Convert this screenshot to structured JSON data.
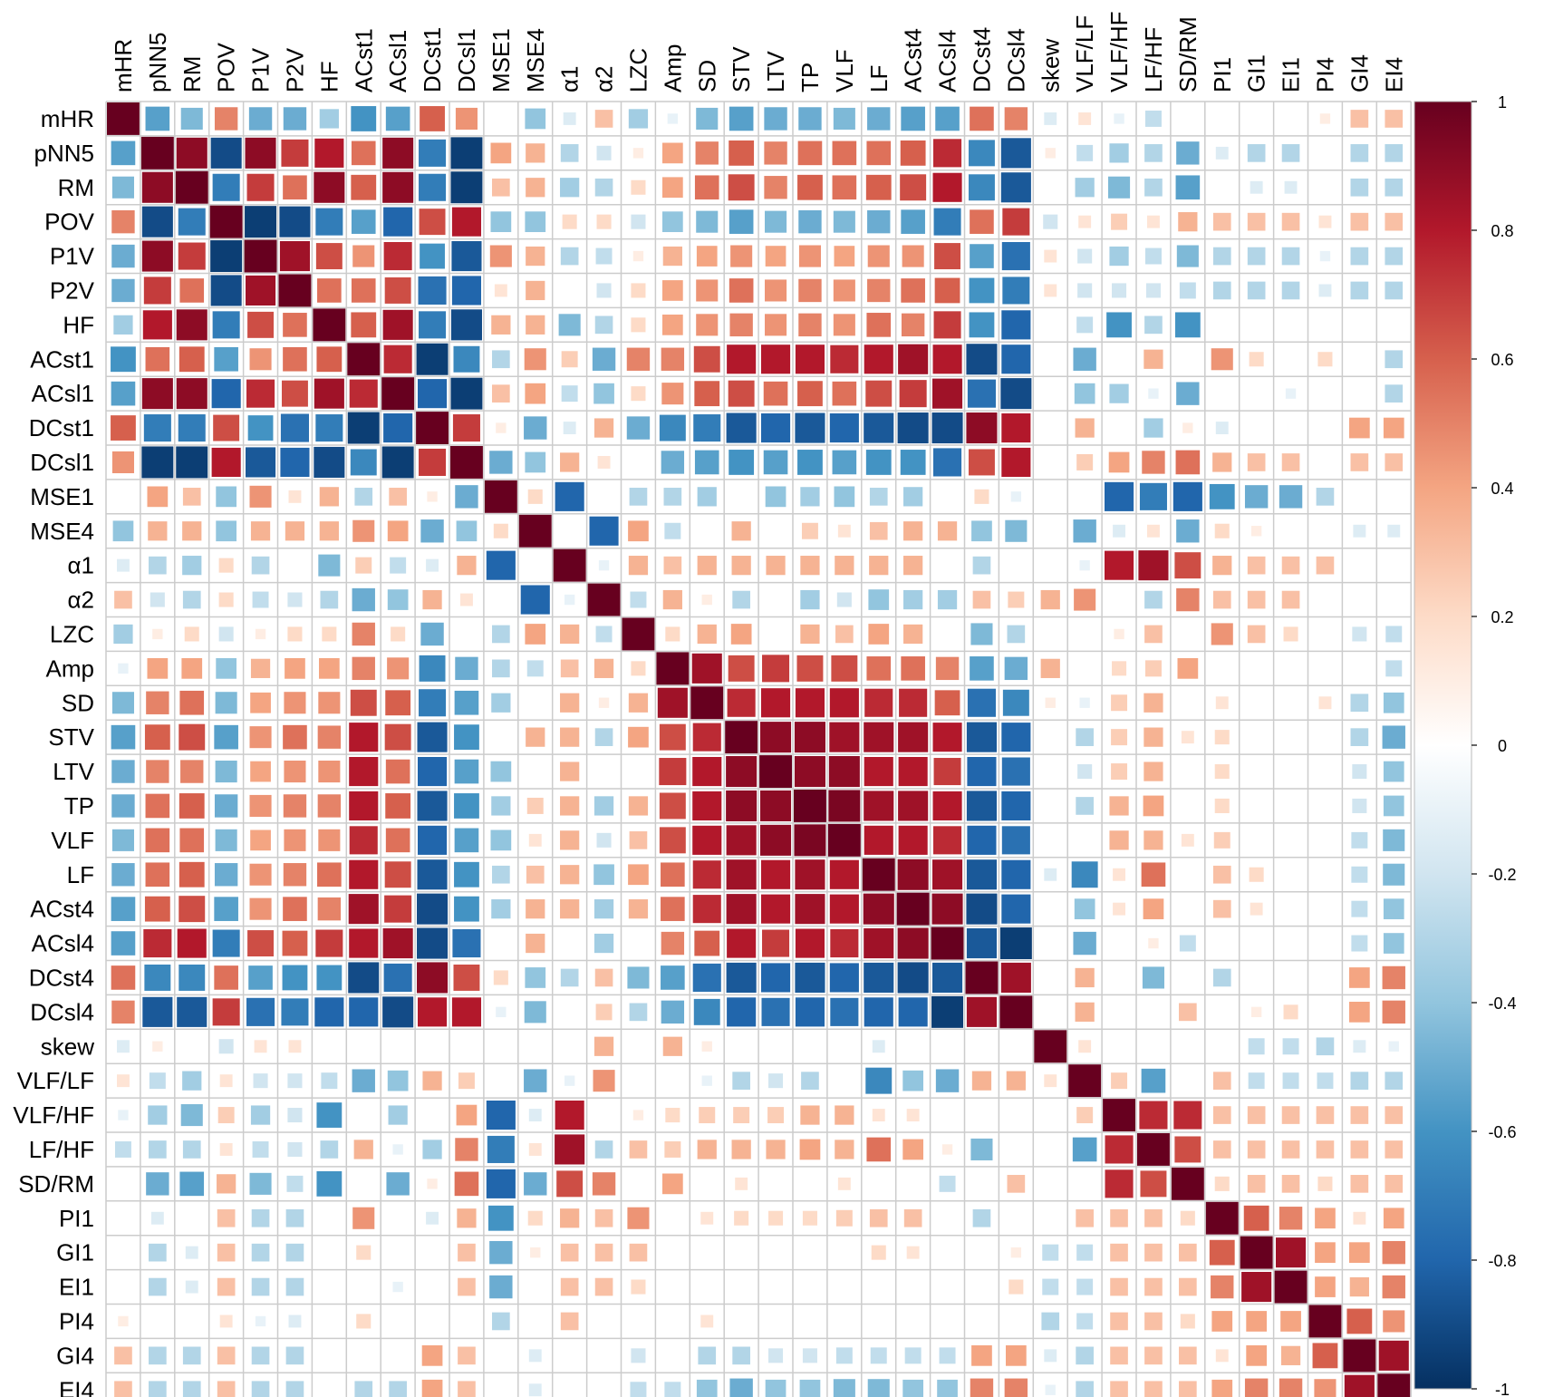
{
  "chart_data": {
    "type": "heatmap",
    "method": "square",
    "variables": [
      "mHR",
      "pNN5",
      "RM",
      "POV",
      "P1V",
      "P2V",
      "HF",
      "ACst1",
      "ACsl1",
      "DCst1",
      "DCsl1",
      "MSE1",
      "MSE4",
      "α1",
      "α2",
      "LZC",
      "Amp",
      "SD",
      "STV",
      "LTV",
      "TP",
      "VLF",
      "LF",
      "ACst4",
      "ACsl4",
      "DCst4",
      "DCsl4",
      "skew",
      "VLF/LF",
      "VLF/HF",
      "LF/HF",
      "SD/RM",
      "PI1",
      "GI1",
      "EI1",
      "PI4",
      "GI4",
      "EI4"
    ],
    "color_scale": {
      "range": [
        -1,
        1
      ],
      "ticks": [
        "1",
        "0.8",
        "0.6",
        "0.4",
        "0.2",
        "0",
        "-0.2",
        "-0.4",
        "-0.6",
        "-0.8",
        "-1"
      ],
      "colors": [
        "#67001F",
        "#B2182B",
        "#D6604D",
        "#F4A582",
        "#FDDBC7",
        "#FFFFFF",
        "#D1E5F0",
        "#92C5DE",
        "#4393C3",
        "#2166AC",
        "#053061"
      ]
    },
    "grid_color": "#cccccc",
    "legend_position": "right",
    "note": "Correlation matrix; each cell's value is its correlation coefficient (lower-triangle values listed, matrix is symmetric with 1 on the diagonal).",
    "lower": [
      [],
      [
        -0.55
      ],
      [
        -0.45,
        0.9
      ],
      [
        0.5,
        -0.9,
        -0.7
      ],
      [
        -0.5,
        0.9,
        0.7,
        -0.95
      ],
      [
        -0.5,
        0.7,
        0.55,
        -0.9,
        0.85
      ],
      [
        -0.35,
        0.8,
        0.9,
        -0.7,
        0.65,
        0.55
      ],
      [
        -0.6,
        0.55,
        0.6,
        -0.55,
        0.45,
        0.55,
        0.6
      ],
      [
        -0.55,
        0.9,
        0.9,
        -0.8,
        0.75,
        0.65,
        0.85,
        0.75
      ],
      [
        0.6,
        -0.7,
        -0.7,
        0.65,
        -0.6,
        -0.75,
        -0.7,
        -0.95,
        -0.8
      ],
      [
        0.45,
        -0.95,
        -0.95,
        0.8,
        -0.85,
        -0.8,
        -0.9,
        -0.65,
        -0.95,
        0.7
      ],
      [
        0.0,
        0.4,
        0.3,
        -0.4,
        0.45,
        0.15,
        0.35,
        -0.3,
        0.3,
        0.1,
        -0.5
      ],
      [
        -0.4,
        0.35,
        0.35,
        -0.4,
        0.35,
        0.35,
        0.35,
        0.45,
        0.4,
        -0.5,
        -0.4,
        0.2
      ],
      [
        -0.15,
        -0.3,
        -0.35,
        0.2,
        -0.3,
        0.0,
        -0.45,
        0.25,
        -0.25,
        -0.15,
        0.35,
        -0.8,
        0.0
      ],
      [
        0.3,
        -0.2,
        -0.3,
        0.2,
        -0.25,
        -0.2,
        -0.3,
        -0.5,
        -0.4,
        0.35,
        0.15,
        0.0,
        -0.8,
        -0.1
      ],
      [
        -0.35,
        0.1,
        0.2,
        -0.2,
        0.1,
        0.2,
        0.2,
        0.5,
        0.2,
        -0.5,
        0.0,
        -0.3,
        0.4,
        0.35,
        -0.25
      ],
      [
        -0.1,
        0.4,
        0.4,
        -0.4,
        0.35,
        0.4,
        0.4,
        0.5,
        0.45,
        -0.65,
        -0.5,
        -0.3,
        -0.25,
        0.3,
        0.35,
        0.2
      ],
      [
        -0.45,
        0.5,
        0.55,
        -0.45,
        0.4,
        0.45,
        0.45,
        0.65,
        0.6,
        -0.7,
        -0.55,
        -0.35,
        0.0,
        0.35,
        0.1,
        0.35,
        0.85
      ],
      [
        -0.55,
        0.6,
        0.65,
        -0.55,
        0.45,
        0.55,
        0.5,
        0.8,
        0.65,
        -0.85,
        -0.6,
        0.0,
        0.35,
        0.35,
        -0.3,
        0.4,
        0.65,
        0.75
      ],
      [
        -0.5,
        0.5,
        0.5,
        -0.45,
        0.4,
        0.45,
        0.45,
        0.8,
        0.55,
        -0.8,
        -0.55,
        -0.4,
        0.0,
        0.35,
        0.0,
        0.0,
        0.7,
        0.8,
        0.9
      ],
      [
        -0.5,
        0.55,
        0.6,
        -0.5,
        0.45,
        0.5,
        0.5,
        0.8,
        0.6,
        -0.85,
        -0.6,
        -0.35,
        0.25,
        0.35,
        -0.35,
        0.35,
        0.65,
        0.8,
        0.9,
        0.9
      ],
      [
        -0.45,
        0.55,
        0.55,
        -0.45,
        0.4,
        0.45,
        0.45,
        0.75,
        0.55,
        -0.8,
        -0.55,
        -0.4,
        0.15,
        0.35,
        -0.2,
        0.3,
        0.65,
        0.8,
        0.85,
        0.9,
        0.95
      ],
      [
        -0.5,
        0.55,
        0.6,
        -0.5,
        0.45,
        0.5,
        0.55,
        0.8,
        0.65,
        -0.85,
        -0.6,
        -0.3,
        0.3,
        0.35,
        -0.4,
        0.4,
        0.55,
        0.75,
        0.85,
        0.8,
        0.85,
        0.8
      ],
      [
        -0.55,
        0.6,
        0.65,
        -0.55,
        0.45,
        0.55,
        0.5,
        0.85,
        0.7,
        -0.9,
        -0.6,
        -0.35,
        0.35,
        0.35,
        -0.35,
        0.35,
        0.55,
        0.75,
        0.85,
        0.8,
        0.85,
        0.8,
        0.9
      ],
      [
        -0.55,
        0.75,
        0.8,
        -0.7,
        0.65,
        0.6,
        0.7,
        0.8,
        0.85,
        -0.9,
        -0.75,
        0.0,
        0.35,
        0.0,
        -0.35,
        0.0,
        0.5,
        0.6,
        0.8,
        0.7,
        0.8,
        0.75,
        0.85,
        0.9
      ],
      [
        0.55,
        -0.65,
        -0.65,
        0.55,
        -0.55,
        -0.6,
        -0.6,
        -0.9,
        -0.75,
        0.9,
        0.65,
        0.2,
        -0.4,
        -0.3,
        0.3,
        -0.45,
        -0.55,
        -0.75,
        -0.85,
        -0.8,
        -0.85,
        -0.8,
        -0.85,
        -0.9,
        -0.85
      ],
      [
        0.5,
        -0.85,
        -0.85,
        0.7,
        -0.75,
        -0.7,
        -0.8,
        -0.8,
        -0.9,
        0.8,
        0.8,
        -0.1,
        -0.45,
        0.0,
        0.25,
        -0.3,
        -0.5,
        -0.65,
        -0.8,
        -0.75,
        -0.8,
        -0.75,
        -0.8,
        -0.8,
        -0.95,
        0.85
      ],
      [
        -0.15,
        0.1,
        0.0,
        -0.2,
        0.15,
        0.15,
        0.0,
        0.0,
        0.0,
        0.0,
        0.0,
        0.0,
        0.0,
        0.0,
        0.35,
        0.0,
        0.35,
        0.1,
        0.0,
        0.0,
        0.0,
        0.0,
        -0.15,
        0.0,
        0.0,
        0.0,
        0.0
      ],
      [
        0.15,
        -0.25,
        -0.35,
        0.15,
        -0.2,
        -0.2,
        -0.25,
        -0.5,
        -0.4,
        0.35,
        0.25,
        0.0,
        -0.5,
        -0.1,
        0.45,
        0.0,
        0.0,
        -0.1,
        -0.3,
        -0.2,
        -0.3,
        0.0,
        -0.65,
        -0.4,
        -0.5,
        0.35,
        0.35,
        0.15
      ],
      [
        -0.1,
        -0.35,
        -0.45,
        0.25,
        -0.35,
        -0.2,
        -0.6,
        0.0,
        -0.35,
        0.0,
        0.4,
        -0.8,
        -0.15,
        0.8,
        0.0,
        0.1,
        0.2,
        0.25,
        0.25,
        0.25,
        0.35,
        0.35,
        0.15,
        0.15,
        0.0,
        0.0,
        0.0,
        0.0,
        0.25
      ],
      [
        -0.25,
        -0.3,
        -0.3,
        0.15,
        -0.25,
        -0.2,
        -0.3,
        0.35,
        -0.1,
        -0.35,
        0.5,
        -0.7,
        0.15,
        0.85,
        -0.3,
        0.3,
        0.25,
        0.35,
        0.35,
        0.35,
        0.4,
        0.35,
        0.55,
        0.4,
        0.1,
        -0.45,
        0.0,
        0.0,
        -0.55,
        0.75
      ],
      [
        0.0,
        -0.5,
        -0.55,
        0.35,
        -0.45,
        -0.25,
        -0.6,
        0.0,
        -0.5,
        0.1,
        0.55,
        -0.8,
        -0.5,
        0.65,
        0.5,
        0.0,
        0.4,
        0.0,
        0.15,
        0.0,
        0.0,
        0.15,
        0.0,
        0.0,
        -0.25,
        0.0,
        0.3,
        0.0,
        0.0,
        0.75,
        0.65
      ],
      [
        0.0,
        -0.15,
        0.0,
        0.3,
        -0.3,
        -0.3,
        0.0,
        0.45,
        0.0,
        -0.15,
        0.35,
        -0.6,
        0.2,
        0.35,
        0.3,
        0.45,
        0.0,
        0.15,
        0.2,
        0.2,
        0.2,
        0.25,
        0.3,
        0.3,
        0.0,
        -0.3,
        0.0,
        0.0,
        0.3,
        0.3,
        0.3,
        0.2
      ],
      [
        0.0,
        -0.3,
        -0.15,
        0.3,
        -0.3,
        -0.3,
        0.0,
        0.2,
        0.0,
        0.0,
        0.3,
        -0.5,
        0.1,
        0.3,
        0.3,
        0.3,
        0.0,
        0.0,
        0.0,
        0.0,
        0.0,
        0.0,
        0.2,
        0.15,
        0.0,
        0.0,
        0.1,
        -0.25,
        -0.25,
        0.3,
        0.3,
        0.3,
        0.6
      ],
      [
        0.0,
        -0.3,
        -0.15,
        0.3,
        -0.3,
        -0.3,
        0.0,
        0.0,
        -0.1,
        0.0,
        0.3,
        -0.5,
        0.0,
        0.3,
        0.3,
        0.2,
        0.0,
        0.0,
        0.0,
        0.0,
        0.0,
        0.0,
        0.0,
        0.0,
        0.0,
        0.0,
        0.2,
        -0.25,
        -0.25,
        0.3,
        0.3,
        0.3,
        0.5,
        0.85
      ],
      [
        0.1,
        0.0,
        0.0,
        0.15,
        -0.1,
        -0.15,
        0.0,
        0.2,
        0.0,
        0.0,
        0.0,
        -0.3,
        0.0,
        0.3,
        0.0,
        0.0,
        0.0,
        0.15,
        0.0,
        0.0,
        0.0,
        0.0,
        0.0,
        0.0,
        0.0,
        0.0,
        0.0,
        -0.3,
        -0.25,
        0.3,
        0.3,
        0.2,
        0.4,
        0.4,
        0.4
      ],
      [
        0.3,
        -0.3,
        -0.3,
        0.3,
        -0.3,
        -0.3,
        0.0,
        0.0,
        0.0,
        0.4,
        0.3,
        0.0,
        -0.15,
        0.0,
        0.0,
        -0.2,
        0.0,
        -0.3,
        -0.3,
        -0.2,
        -0.2,
        -0.25,
        -0.25,
        -0.25,
        -0.25,
        0.4,
        0.4,
        -0.15,
        -0.3,
        0.3,
        0.3,
        0.3,
        0.15,
        0.4,
        0.35,
        0.6
      ],
      [
        0.3,
        -0.3,
        -0.3,
        0.3,
        -0.3,
        -0.3,
        0.0,
        -0.3,
        -0.3,
        0.4,
        0.3,
        0.0,
        -0.15,
        0.0,
        0.0,
        -0.25,
        -0.25,
        -0.4,
        -0.5,
        -0.4,
        -0.4,
        -0.45,
        -0.45,
        -0.4,
        -0.4,
        0.5,
        0.5,
        -0.1,
        -0.3,
        0.3,
        0.3,
        0.3,
        0.4,
        0.5,
        0.5,
        0.45,
        0.85
      ]
    ]
  }
}
